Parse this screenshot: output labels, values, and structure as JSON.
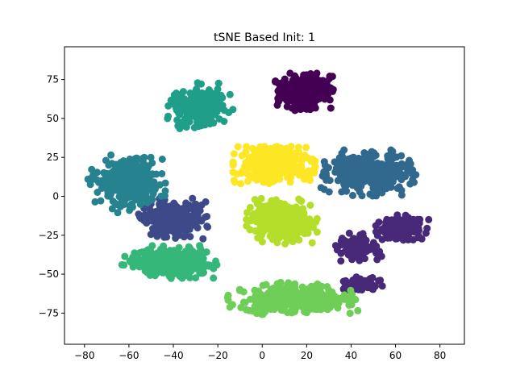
{
  "chart_data": {
    "type": "scatter",
    "title": "tSNE Based Init: 1",
    "xlabel": "",
    "ylabel": "",
    "xlim": [
      -89,
      91
    ],
    "ylim": [
      -95,
      96
    ],
    "xticks": [
      -80,
      -60,
      -40,
      -20,
      0,
      20,
      40,
      60,
      80
    ],
    "yticks": [
      -75,
      -50,
      -25,
      0,
      25,
      50,
      75
    ],
    "grid": false,
    "legend": "none",
    "clusters": [
      {
        "color": "#440154",
        "center": [
          19,
          67
        ],
        "spread": [
          10,
          9
        ],
        "points": 320
      },
      {
        "color": "#482878",
        "center": [
          63,
          -20
        ],
        "spread": [
          9,
          6
        ],
        "points": 200
      },
      {
        "color": "#482878",
        "center": [
          43,
          -33
        ],
        "spread": [
          8,
          7
        ],
        "points": 130
      },
      {
        "color": "#482878",
        "center": [
          46,
          -57
        ],
        "spread": [
          7,
          4
        ],
        "points": 60
      },
      {
        "color": "#3e4989",
        "center": [
          -40,
          -14
        ],
        "spread": [
          12,
          10
        ],
        "points": 260
      },
      {
        "color": "#31688e",
        "center": [
          48,
          15
        ],
        "spread": [
          16,
          11
        ],
        "points": 380
      },
      {
        "color": "#26828e",
        "center": [
          -61,
          8
        ],
        "spread": [
          13,
          14
        ],
        "points": 330
      },
      {
        "color": "#1f9e89",
        "center": [
          -28,
          58
        ],
        "spread": [
          11,
          11
        ],
        "points": 280
      },
      {
        "color": "#35b779",
        "center": [
          -42,
          -42
        ],
        "spread": [
          16,
          8
        ],
        "points": 320
      },
      {
        "color": "#6ece58",
        "center": [
          14,
          -66
        ],
        "spread": [
          22,
          8
        ],
        "points": 360
      },
      {
        "color": "#b5de2b",
        "center": [
          9,
          -16
        ],
        "spread": [
          12,
          11
        ],
        "points": 320
      },
      {
        "color": "#fde725",
        "center": [
          5,
          20
        ],
        "spread": [
          14,
          9
        ],
        "points": 320
      }
    ]
  }
}
